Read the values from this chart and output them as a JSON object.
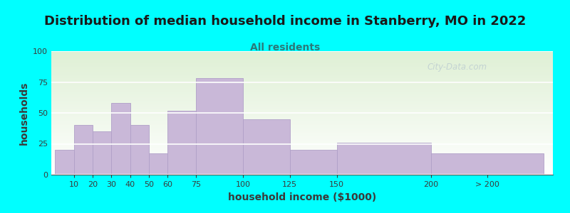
{
  "title": "Distribution of median household income in Stanberry, MO in 2022",
  "subtitle": "All residents",
  "xlabel": "household income ($1000)",
  "ylabel": "households",
  "background_color": "#00FFFF",
  "plot_bg_top": "#dff0d5",
  "plot_bg_bottom": "#ffffff",
  "bar_color": "#c9b8d8",
  "bar_edge_color": "#b0a0c8",
  "categories": [
    "10",
    "20",
    "30",
    "40",
    "50",
    "60",
    "75",
    "100",
    "125",
    "150",
    "200",
    "> 200"
  ],
  "values": [
    20,
    40,
    35,
    58,
    40,
    17,
    52,
    78,
    45,
    20,
    26,
    17
  ],
  "x_starts": [
    0,
    10,
    20,
    30,
    40,
    50,
    60,
    75,
    100,
    125,
    150,
    200
  ],
  "x_widths": [
    10,
    10,
    10,
    10,
    10,
    10,
    15,
    25,
    25,
    25,
    50,
    60
  ],
  "xtick_pos": [
    10,
    20,
    30,
    40,
    50,
    60,
    75,
    100,
    125,
    150,
    200,
    230
  ],
  "xlim": [
    -2,
    265
  ],
  "ylim": [
    0,
    100
  ],
  "yticks": [
    0,
    25,
    50,
    75,
    100
  ],
  "title_fontsize": 13,
  "subtitle_fontsize": 10,
  "axis_label_fontsize": 10,
  "tick_fontsize": 8,
  "title_color": "#1a1a1a",
  "subtitle_color": "#2a7a7a",
  "axis_label_color": "#3a3a3a",
  "tick_color": "#3a3a3a",
  "watermark_text": "City-Data.com",
  "watermark_color": "#aabbcc",
  "watermark_alpha": 0.55
}
